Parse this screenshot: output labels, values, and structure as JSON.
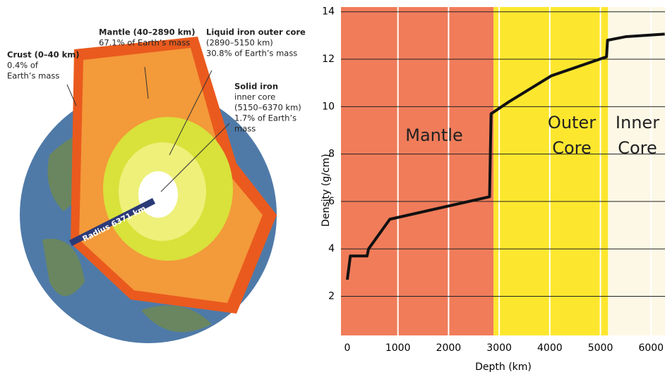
{
  "illustration": {
    "labels": [
      {
        "lines": [
          "Crust (0–40 km)",
          "0.4% of",
          "Earth’s mass"
        ]
      },
      {
        "lines": [
          "Mantle (40–2890 km)",
          "67.1% of Earth’s mass"
        ]
      },
      {
        "lines": [
          "Liquid iron outer core",
          "(2890–5150 km)",
          "30.8% of Earth’s mass"
        ]
      },
      {
        "lines": [
          "Solid iron",
          "inner core",
          "(5150–6370 km)",
          "1.7% of Earth’s",
          "mass"
        ]
      }
    ],
    "radius_label": "Radius 6371 km"
  },
  "chart_data": {
    "type": "line",
    "xlabel": "Depth (km)",
    "ylabel": "Density (g/cm)",
    "x": [
      0,
      60,
      390,
      420,
      840,
      2810,
      2840,
      3190,
      4030,
      5120,
      5140,
      5500,
      6270
    ],
    "series": [
      {
        "color": "#111111",
        "values": [
          2.7,
          3.7,
          3.7,
          4.0,
          5.25,
          6.2,
          9.7,
          10.2,
          11.3,
          12.1,
          12.8,
          12.95,
          13.06
        ]
      }
    ],
    "regions": [
      {
        "lines": [
          "Mantle"
        ],
        "color": "#f07c5a"
      },
      {
        "lines": [
          "Outer",
          "Core"
        ],
        "color": "#fde72e"
      },
      {
        "lines": [
          "Inner",
          "Core"
        ],
        "color": "#fdf8e6"
      }
    ],
    "boundaries": [
      2890,
      5150
    ],
    "xlim": [
      -125,
      6275
    ],
    "ylim": [
      0.35,
      14.2
    ],
    "xticks": [
      0,
      1000,
      2000,
      3000,
      4000,
      5000,
      6000
    ],
    "yticks": [
      2,
      4,
      6,
      8,
      10,
      12,
      14
    ]
  }
}
